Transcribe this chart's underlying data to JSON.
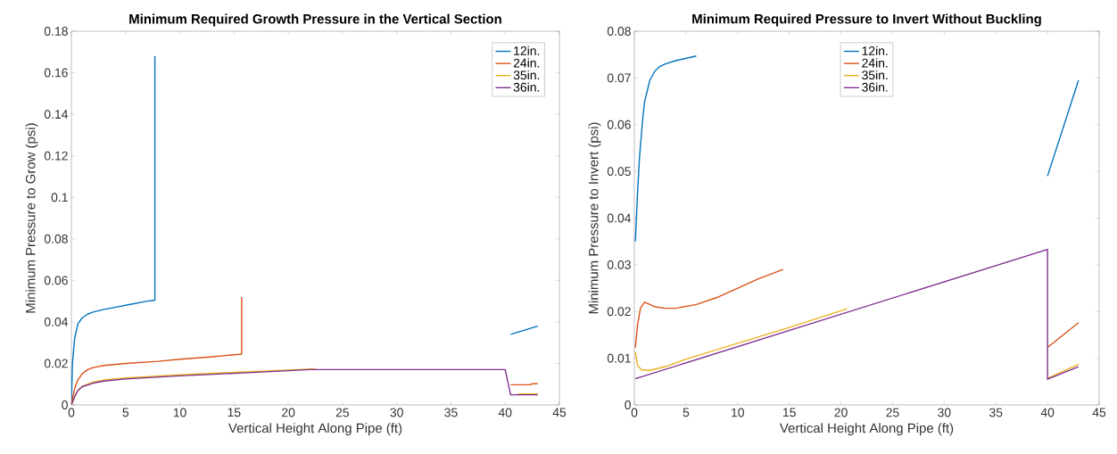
{
  "chart_data": [
    {
      "type": "line",
      "title": "Minimum Required Growth Pressure in the Vertical Section",
      "xlabel": "Vertical Height Along Pipe (ft)",
      "ylabel": "Minimum Pressure to Grow (psi)",
      "xlim": [
        0,
        45
      ],
      "ylim": [
        0,
        0.18
      ],
      "xticks": [
        0,
        5,
        10,
        15,
        20,
        25,
        30,
        35,
        40,
        45
      ],
      "yticks": [
        0,
        0.02,
        0.04,
        0.06,
        0.08,
        0.1,
        0.12,
        0.14,
        0.16,
        0.18
      ],
      "legend": "top right",
      "grid": false,
      "series": [
        {
          "name": "12in.",
          "color": "#0072bd",
          "x": [
            0,
            0.1,
            0.3,
            0.6,
            1,
            1.5,
            2,
            3,
            4,
            5,
            6,
            7,
            7.7,
            7.7,
            20,
            40.5,
            43
          ],
          "values": [
            0,
            0.02,
            0.032,
            0.039,
            0.042,
            0.0437,
            0.0447,
            0.046,
            0.047,
            0.048,
            0.049,
            0.05,
            0.0505,
            0.168,
            null,
            0.034,
            0.038
          ]
        },
        {
          "name": "24in.",
          "color": "#d95319",
          "x": [
            0,
            0.3,
            0.6,
            1,
            1.5,
            2,
            3,
            5,
            8,
            10,
            13,
            15.7,
            15.7,
            30,
            40.5,
            42.3,
            42.5,
            43
          ],
          "values": [
            0,
            0.008,
            0.012,
            0.015,
            0.017,
            0.018,
            0.019,
            0.02,
            0.021,
            0.022,
            0.0232,
            0.0245,
            0.052,
            null,
            0.0097,
            0.0097,
            0.0102,
            0.0102
          ]
        },
        {
          "name": "35in.",
          "color": "#edb120",
          "x": [
            0,
            0.3,
            0.6,
            1,
            2,
            3,
            5,
            10,
            15,
            20,
            22.5,
            30,
            41.2,
            43
          ],
          "values": [
            0,
            0.004,
            0.007,
            0.009,
            0.011,
            0.012,
            0.013,
            0.0145,
            0.0157,
            0.0168,
            0.0174,
            null,
            0.0053,
            0.0053
          ]
        },
        {
          "name": "36in.",
          "color": "#7e2f8e",
          "x": [
            0,
            0.3,
            0.6,
            1,
            2,
            3,
            5,
            10,
            15,
            20,
            22,
            40,
            40.5,
            43
          ],
          "values": [
            0,
            0.004,
            0.007,
            0.0088,
            0.0105,
            0.0115,
            0.0125,
            0.014,
            0.0152,
            0.0165,
            0.017,
            0.017,
            0.0049,
            0.0049
          ]
        }
      ]
    },
    {
      "type": "line",
      "title": "Minimum Required Pressure to Invert Without Buckling",
      "xlabel": "Vertical Height Along Pipe (ft)",
      "ylabel": "Minimum Pressure to Invert (psi)",
      "xlim": [
        0,
        45
      ],
      "ylim": [
        0,
        0.08
      ],
      "xticks": [
        0,
        5,
        10,
        15,
        20,
        25,
        30,
        35,
        40,
        45
      ],
      "yticks": [
        0,
        0.01,
        0.02,
        0.03,
        0.04,
        0.05,
        0.06,
        0.07,
        0.08
      ],
      "legend": "top",
      "grid": false,
      "series": [
        {
          "name": "12in.",
          "color": "#0072bd",
          "x": [
            0.1,
            0.3,
            0.5,
            0.8,
            1,
            1.5,
            2,
            2.5,
            3,
            4,
            5,
            6,
            20,
            40,
            43
          ],
          "values": [
            0.035,
            0.045,
            0.053,
            0.061,
            0.065,
            0.0695,
            0.0715,
            0.0725,
            0.073,
            0.0737,
            0.0742,
            0.0747,
            null,
            0.049,
            0.0695
          ]
        },
        {
          "name": "24in.",
          "color": "#d95319",
          "x": [
            0.1,
            0.3,
            0.6,
            1,
            1.5,
            2,
            3,
            4,
            6,
            8,
            10,
            12,
            14.4,
            30,
            40,
            43
          ],
          "values": [
            0.0123,
            0.017,
            0.0208,
            0.022,
            0.0215,
            0.021,
            0.0207,
            0.0207,
            0.0215,
            0.023,
            0.025,
            0.027,
            0.029,
            null,
            0.0123,
            0.0176
          ]
        },
        {
          "name": "35in.",
          "color": "#edb120",
          "x": [
            0.1,
            0.3,
            0.7,
            1.5,
            3,
            5,
            10,
            15,
            20.6,
            30,
            40,
            43
          ],
          "values": [
            0.0113,
            0.0085,
            0.0075,
            0.0074,
            0.0082,
            0.0098,
            0.0132,
            0.0166,
            0.0206,
            null,
            0.0057,
            0.0087
          ]
        },
        {
          "name": "36in.",
          "color": "#7e2f8e",
          "x": [
            0.1,
            40,
            40,
            43
          ],
          "values": [
            0.0056,
            0.0333,
            0.0055,
            0.0082
          ]
        }
      ]
    }
  ]
}
